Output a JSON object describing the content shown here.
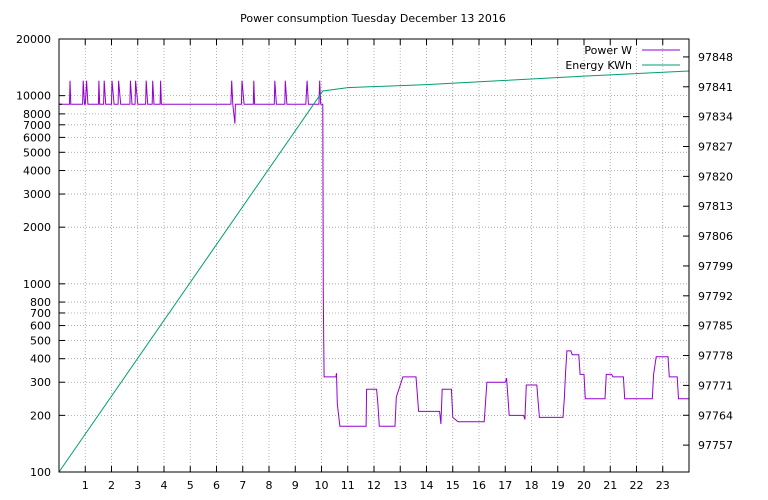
{
  "chart_data": {
    "type": "line",
    "title": "Power consumption Tuesday December 13 2016",
    "x": {
      "min": 0,
      "max": 24,
      "ticks": [
        1,
        2,
        3,
        4,
        5,
        6,
        7,
        8,
        9,
        10,
        11,
        12,
        13,
        14,
        15,
        16,
        17,
        18,
        19,
        20,
        21,
        22,
        23
      ],
      "label": ""
    },
    "y_left": {
      "scale": "log",
      "min": 100,
      "max": 20000,
      "ticks": [
        100,
        200,
        300,
        400,
        500,
        600,
        700,
        800,
        1000,
        2000,
        3000,
        4000,
        5000,
        6000,
        7000,
        8000,
        10000,
        20000
      ],
      "label": ""
    },
    "y_right": {
      "scale": "linear",
      "min": 97750.7,
      "max": 97852.2,
      "ticks": [
        97757,
        97764,
        97771,
        97778,
        97785,
        97792,
        97799,
        97806,
        97813,
        97820,
        97827,
        97834,
        97841,
        97848
      ],
      "label": ""
    },
    "grid": true,
    "legend_position": "top-right",
    "series": [
      {
        "name": "Power W",
        "color": "#9400d3",
        "axis": "left",
        "points": [
          [
            0,
            9000
          ],
          [
            0.4,
            9000
          ],
          [
            0.42,
            12000
          ],
          [
            0.45,
            9000
          ],
          [
            0.9,
            9000
          ],
          [
            0.92,
            12000
          ],
          [
            0.97,
            9000
          ],
          [
            1.0,
            9000
          ],
          [
            1.05,
            12000
          ],
          [
            1.1,
            9000
          ],
          [
            1.5,
            9000
          ],
          [
            1.52,
            12000
          ],
          [
            1.55,
            9000
          ],
          [
            1.7,
            9000
          ],
          [
            1.72,
            12000
          ],
          [
            1.78,
            9000
          ],
          [
            2.0,
            9000
          ],
          [
            2.02,
            12000
          ],
          [
            2.1,
            9000
          ],
          [
            2.25,
            9000
          ],
          [
            2.27,
            12000
          ],
          [
            2.35,
            9000
          ],
          [
            2.7,
            9000
          ],
          [
            2.72,
            12000
          ],
          [
            2.78,
            9000
          ],
          [
            2.9,
            9000
          ],
          [
            2.92,
            12000
          ],
          [
            3.0,
            9000
          ],
          [
            3.3,
            9000
          ],
          [
            3.32,
            12000
          ],
          [
            3.38,
            9000
          ],
          [
            3.55,
            9000
          ],
          [
            3.57,
            12000
          ],
          [
            3.62,
            9000
          ],
          [
            3.85,
            9000
          ],
          [
            3.87,
            12000
          ],
          [
            3.9,
            9000
          ],
          [
            4.2,
            9000
          ],
          [
            5.0,
            9000
          ],
          [
            6.0,
            9000
          ],
          [
            6.55,
            9000
          ],
          [
            6.58,
            12000
          ],
          [
            6.62,
            9000
          ],
          [
            6.7,
            7100
          ],
          [
            6.72,
            9000
          ],
          [
            6.95,
            9000
          ],
          [
            6.97,
            12000
          ],
          [
            7.05,
            9000
          ],
          [
            7.4,
            9000
          ],
          [
            7.42,
            12000
          ],
          [
            7.45,
            9000
          ],
          [
            8.0,
            9000
          ],
          [
            8.2,
            9000
          ],
          [
            8.22,
            12000
          ],
          [
            8.28,
            9000
          ],
          [
            8.6,
            9000
          ],
          [
            8.62,
            12000
          ],
          [
            8.68,
            9000
          ],
          [
            9.0,
            9000
          ],
          [
            9.4,
            9000
          ],
          [
            9.45,
            12000
          ],
          [
            9.5,
            9000
          ],
          [
            9.9,
            9000
          ],
          [
            9.93,
            12000
          ],
          [
            9.97,
            9000
          ],
          [
            10.05,
            9000
          ],
          [
            10.07,
            850
          ],
          [
            10.1,
            320
          ],
          [
            10.55,
            320
          ],
          [
            10.57,
            335
          ],
          [
            10.6,
            230
          ],
          [
            10.7,
            175
          ],
          [
            11.7,
            175
          ],
          [
            11.72,
            275
          ],
          [
            12.1,
            275
          ],
          [
            12.15,
            230
          ],
          [
            12.2,
            175
          ],
          [
            12.8,
            175
          ],
          [
            12.85,
            250
          ],
          [
            13.1,
            320
          ],
          [
            13.6,
            320
          ],
          [
            13.7,
            210
          ],
          [
            14.5,
            210
          ],
          [
            14.55,
            180
          ],
          [
            14.6,
            275
          ],
          [
            14.95,
            275
          ],
          [
            15.0,
            195
          ],
          [
            15.2,
            185
          ],
          [
            16.2,
            185
          ],
          [
            16.3,
            300
          ],
          [
            17.0,
            300
          ],
          [
            17.05,
            315
          ],
          [
            17.15,
            200
          ],
          [
            17.7,
            200
          ],
          [
            17.75,
            190
          ],
          [
            17.8,
            290
          ],
          [
            18.2,
            290
          ],
          [
            18.3,
            195
          ],
          [
            19.2,
            195
          ],
          [
            19.25,
            245
          ],
          [
            19.3,
            340
          ],
          [
            19.35,
            440
          ],
          [
            19.5,
            440
          ],
          [
            19.55,
            420
          ],
          [
            19.8,
            420
          ],
          [
            19.85,
            330
          ],
          [
            20.0,
            330
          ],
          [
            20.05,
            245
          ],
          [
            20.8,
            245
          ],
          [
            20.85,
            330
          ],
          [
            21.05,
            330
          ],
          [
            21.1,
            320
          ],
          [
            21.5,
            320
          ],
          [
            21.55,
            245
          ],
          [
            22.6,
            245
          ],
          [
            22.65,
            330
          ],
          [
            22.75,
            410
          ],
          [
            23.2,
            410
          ],
          [
            23.25,
            320
          ],
          [
            23.55,
            320
          ],
          [
            23.6,
            245
          ],
          [
            24.0,
            245
          ]
        ]
      },
      {
        "name": "Energy KWh",
        "color": "#009e73",
        "axis": "right",
        "points": [
          [
            0,
            97750.7
          ],
          [
            10.05,
            97840
          ],
          [
            11,
            97840.8
          ],
          [
            14,
            97841.5
          ],
          [
            17,
            97842.5
          ],
          [
            20,
            97843.5
          ],
          [
            24,
            97844.7
          ]
        ]
      }
    ]
  }
}
